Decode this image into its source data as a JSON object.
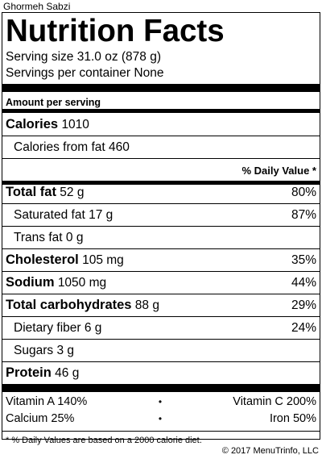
{
  "dish_name": "Ghormeh Sabzi",
  "title": "Nutrition Facts",
  "serving_size": "Serving size 31.0 oz (878 g)",
  "servings_per_container": "Servings per container None",
  "amount_per_serving": "Amount per serving",
  "calories": {
    "label": "Calories",
    "value": "1010"
  },
  "calories_from_fat": {
    "label": "Calories from fat",
    "value": "460"
  },
  "dv_header": "% Daily Value *",
  "nutrients": [
    {
      "label": "Total fat",
      "amount": "52 g",
      "dv": "80%"
    },
    {
      "label": "Saturated fat",
      "amount": "17 g",
      "dv": "87%"
    },
    {
      "label": "Trans fat",
      "amount": "0 g",
      "dv": ""
    },
    {
      "label": "Cholesterol",
      "amount": "105 mg",
      "dv": "35%"
    },
    {
      "label": "Sodium",
      "amount": "1050 mg",
      "dv": "44%"
    },
    {
      "label": "Total carbohydrates",
      "amount": "88 g",
      "dv": "29%"
    },
    {
      "label": "Dietary fiber",
      "amount": "6 g",
      "dv": "24%"
    },
    {
      "label": "Sugars",
      "amount": "3 g",
      "dv": ""
    },
    {
      "label": "Protein",
      "amount": "46 g",
      "dv": ""
    }
  ],
  "vitamins": [
    {
      "left": "Vitamin A 140%",
      "right": "Vitamin C 200%"
    },
    {
      "left": "Calcium 25%",
      "right": "Iron 50%"
    }
  ],
  "bullet": "•",
  "footnote": "* % Daily Values are based on a 2000 calorie diet.",
  "copyright": "© 2017 MenuTrinfo, LLC"
}
